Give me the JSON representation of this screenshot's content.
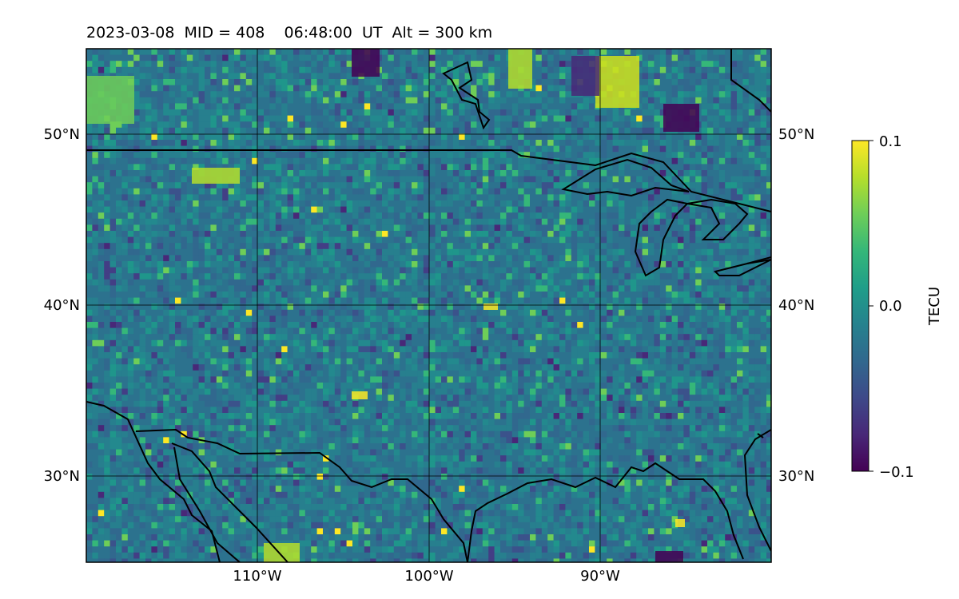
{
  "title": "2023-03-08  MID = 408    06:48:00  UT  Alt = 300 km",
  "map": {
    "lon_range": [
      -120,
      -80
    ],
    "lat_range": [
      25,
      55
    ],
    "lat_ticks": [
      {
        "value": 30,
        "label": "30°N"
      },
      {
        "value": 40,
        "label": "40°N"
      },
      {
        "value": 50,
        "label": "50°N"
      }
    ],
    "lon_ticks": [
      {
        "value": -110,
        "label": "110°W"
      },
      {
        "value": -100,
        "label": "100°W"
      },
      {
        "value": -90,
        "label": "90°W"
      }
    ],
    "grid": true,
    "colormap": "viridis"
  },
  "colorbar": {
    "label": "TECU",
    "min": -0.1,
    "max": 0.1,
    "ticks": [
      {
        "value": 0.1,
        "label": "0.1"
      },
      {
        "value": 0.0,
        "label": "0.0"
      },
      {
        "value": -0.1,
        "label": "−0.1"
      }
    ],
    "colors": [
      "#440154",
      "#482878",
      "#3e4989",
      "#31688e",
      "#26828e",
      "#1f9e89",
      "#35b779",
      "#6ece58",
      "#b5de2b",
      "#fde725"
    ]
  }
}
